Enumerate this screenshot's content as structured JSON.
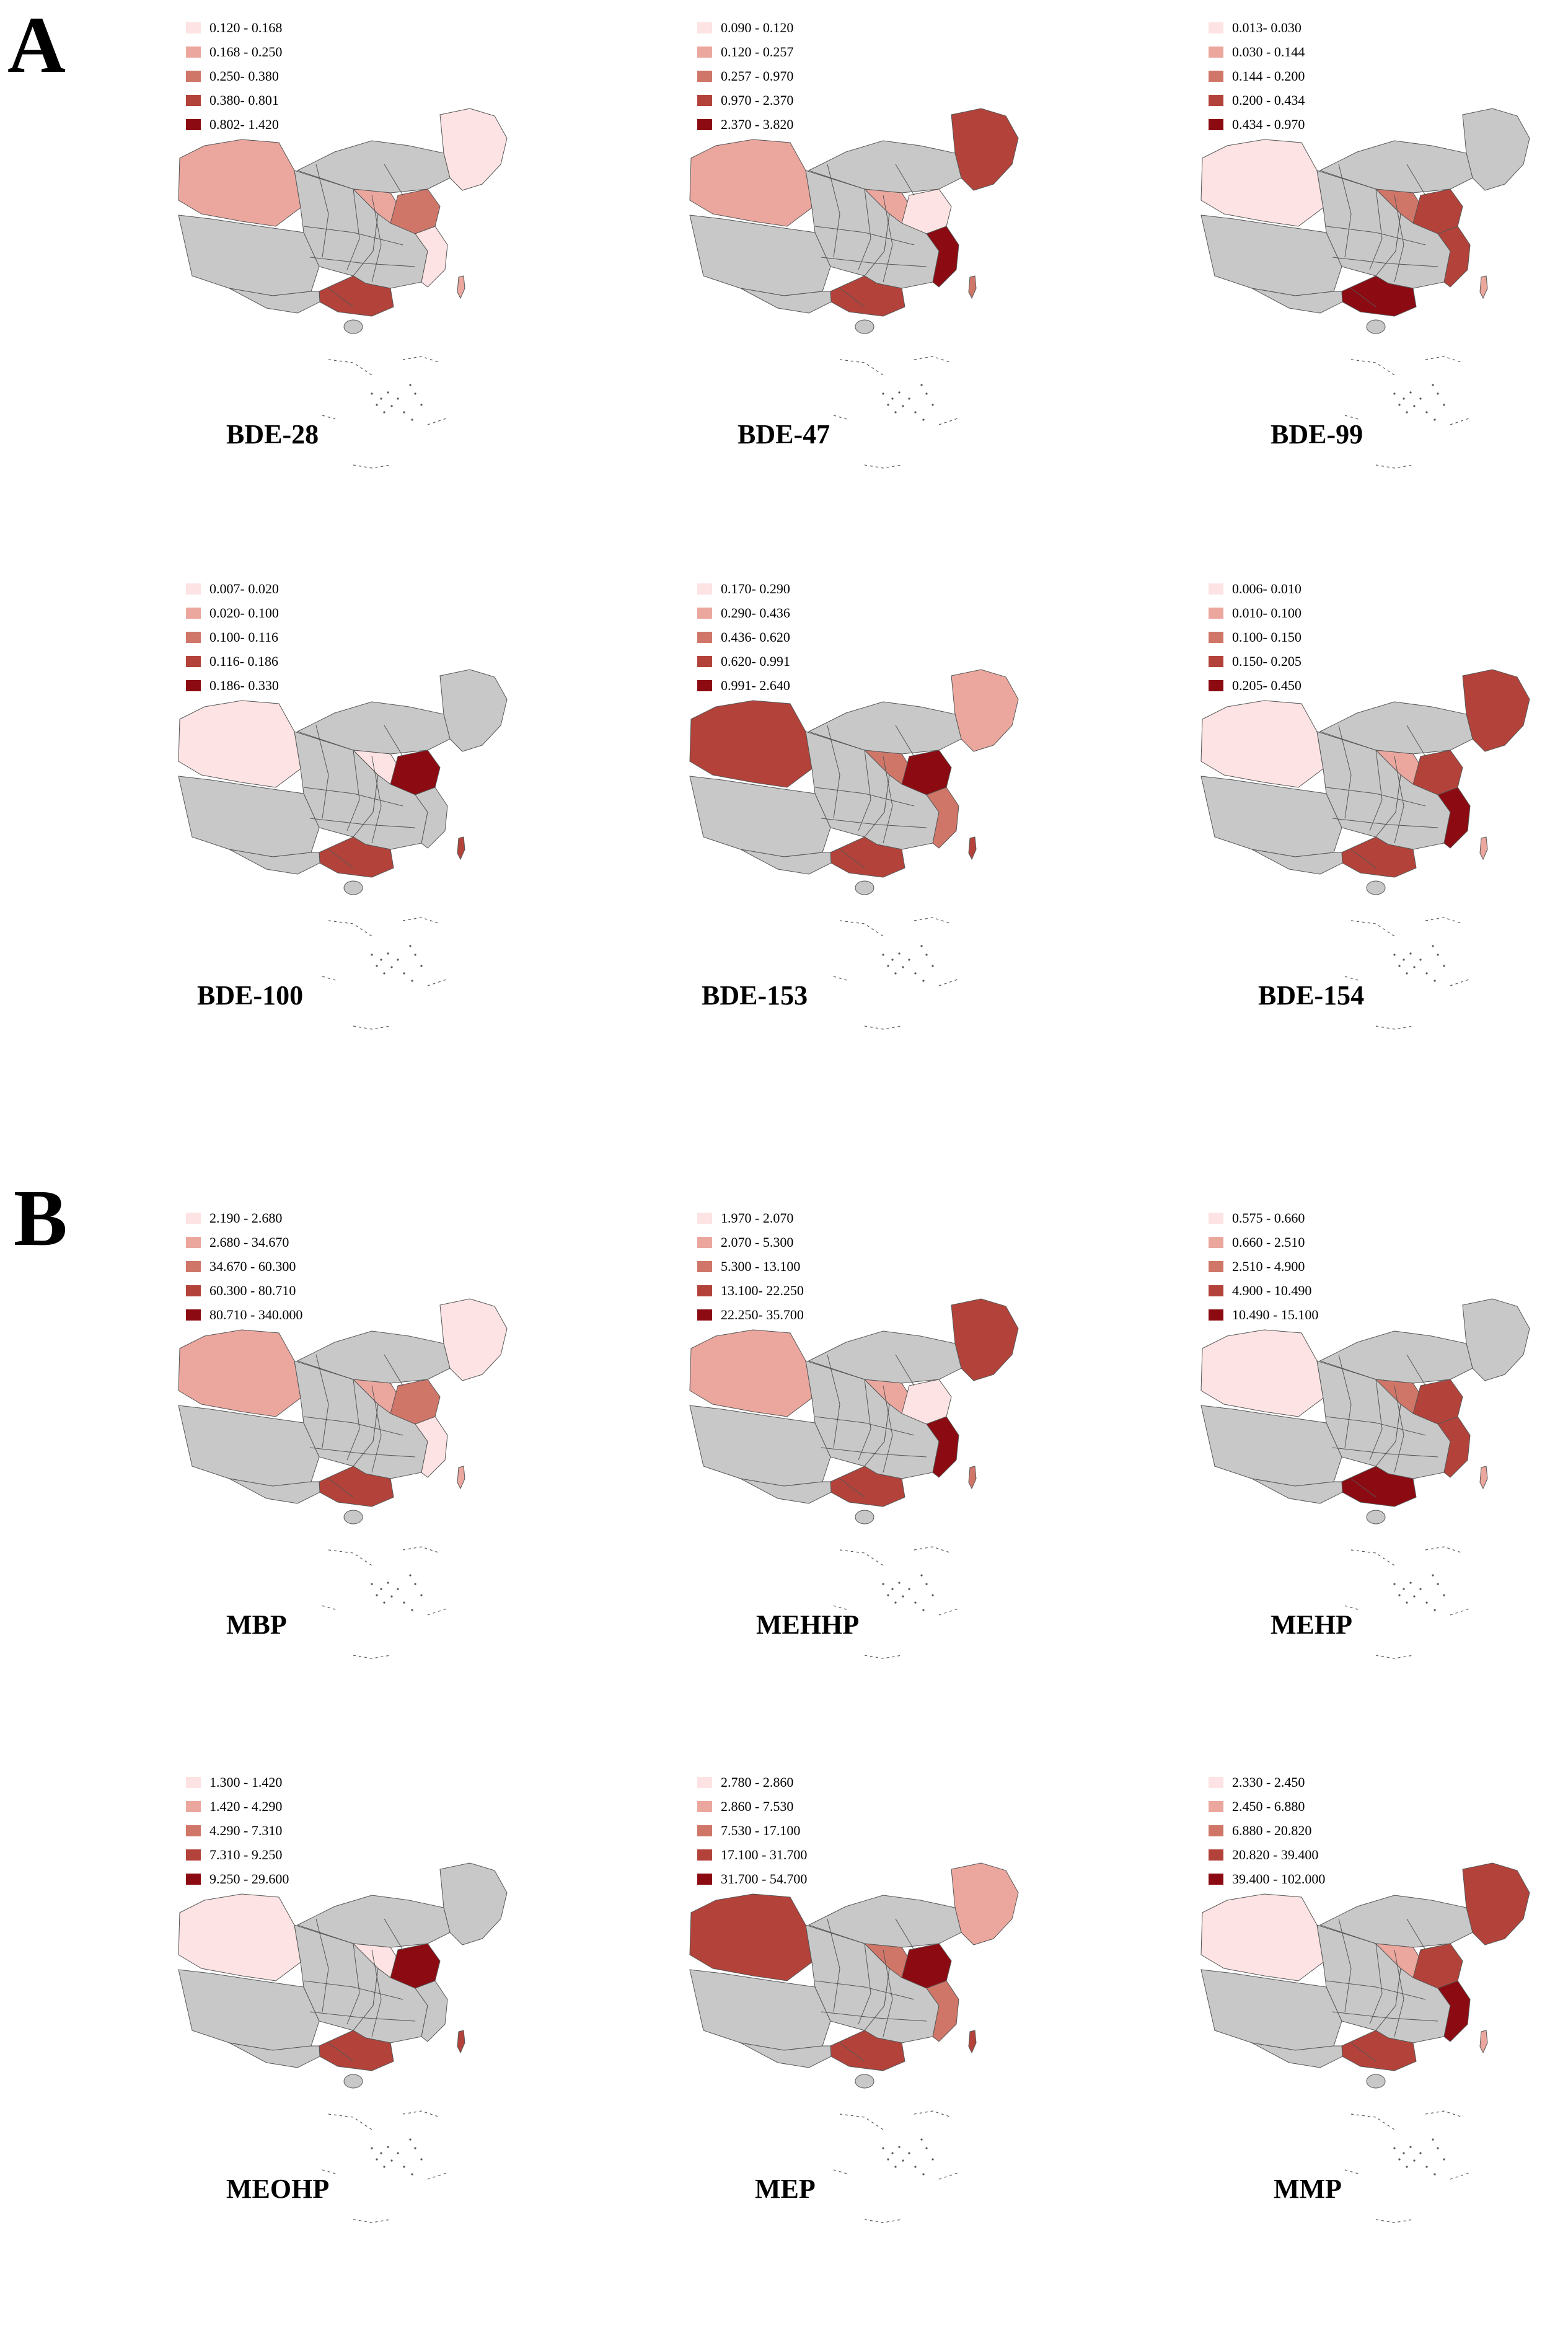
{
  "colors": {
    "class1": "#fde3e3",
    "class2": "#eba79e",
    "class3": "#d07668",
    "class4": "#b3433a",
    "class5": "#8c0b12",
    "nodata": "#c8c8c8",
    "boundary": "#555555"
  },
  "sections": [
    {
      "letter": "A",
      "panels": [
        {
          "title": "BDE-28",
          "legend": [
            "0.120 - 0.168",
            "0.168 - 0.250",
            "0.250- 0.380",
            "0.380- 0.801",
            "0.802- 1.420"
          ],
          "regions": {
            "west": 2,
            "northeast": 1,
            "north": 2,
            "east_coast": 3,
            "south": 4,
            "southeast": 1,
            "island": 2
          }
        },
        {
          "title": "BDE-47",
          "legend": [
            "0.090 - 0.120",
            "0.120 - 0.257",
            "0.257 - 0.970",
            "0.970 - 2.370",
            "2.370 - 3.820"
          ],
          "regions": {
            "west": 2,
            "northeast": 4,
            "north": 2,
            "east_coast": 1,
            "south": 4,
            "southeast": 5,
            "island": 3
          }
        },
        {
          "title": "BDE-99",
          "legend": [
            "0.013- 0.030",
            "0.030 - 0.144",
            "0.144 - 0.200",
            "0.200 - 0.434",
            "0.434 - 0.970"
          ],
          "regions": {
            "west": 1,
            "northeast": 0,
            "north": 3,
            "east_coast": 4,
            "south": 5,
            "southeast": 4,
            "island": 2
          }
        },
        {
          "title": "BDE-100",
          "legend": [
            "0.007- 0.020",
            "0.020- 0.100",
            "0.100- 0.116",
            "0.116- 0.186",
            "0.186- 0.330"
          ],
          "regions": {
            "west": 1,
            "northeast": 0,
            "north": 1,
            "east_coast": 5,
            "south": 4,
            "southeast": 0,
            "island": 4
          }
        },
        {
          "title": "BDE-153",
          "legend": [
            "0.170- 0.290",
            "0.290- 0.436",
            "0.436- 0.620",
            "0.620- 0.991",
            "0.991- 2.640"
          ],
          "regions": {
            "west": 4,
            "northeast": 2,
            "north": 3,
            "east_coast": 5,
            "south": 4,
            "southeast": 3,
            "island": 4
          }
        },
        {
          "title": "BDE-154",
          "legend": [
            "0.006- 0.010",
            "0.010- 0.100",
            "0.100- 0.150",
            "0.150- 0.205",
            "0.205- 0.450"
          ],
          "regions": {
            "west": 1,
            "northeast": 4,
            "north": 2,
            "east_coast": 4,
            "south": 4,
            "southeast": 5,
            "island": 2
          }
        }
      ]
    },
    {
      "letter": "B",
      "panels": [
        {
          "title": "MBP",
          "legend": [
            "2.190 - 2.680",
            "2.680 - 34.670",
            "34.670 - 60.300",
            "60.300 - 80.710",
            "80.710 - 340.000"
          ],
          "regions": {
            "west": 2,
            "northeast": 1,
            "north": 2,
            "east_coast": 3,
            "south": 4,
            "southeast": 1,
            "island": 2
          }
        },
        {
          "title": "MEHHP",
          "legend": [
            "1.970 - 2.070",
            "2.070 - 5.300",
            "5.300 - 13.100",
            "13.100- 22.250",
            "22.250- 35.700"
          ],
          "regions": {
            "west": 2,
            "northeast": 4,
            "north": 2,
            "east_coast": 1,
            "south": 4,
            "southeast": 5,
            "island": 3
          }
        },
        {
          "title": "MEHP",
          "legend": [
            "0.575 - 0.660",
            "0.660 - 2.510",
            "2.510 - 4.900",
            "4.900 - 10.490",
            "10.490 - 15.100"
          ],
          "regions": {
            "west": 1,
            "northeast": 0,
            "north": 3,
            "east_coast": 4,
            "south": 5,
            "southeast": 4,
            "island": 2
          }
        },
        {
          "title": "MEOHP",
          "legend": [
            "1.300 - 1.420",
            "1.420 - 4.290",
            "4.290 - 7.310",
            "7.310 - 9.250",
            "9.250 - 29.600"
          ],
          "regions": {
            "west": 1,
            "northeast": 0,
            "north": 1,
            "east_coast": 5,
            "south": 4,
            "southeast": 0,
            "island": 4
          }
        },
        {
          "title": "MEP",
          "legend": [
            "2.780 - 2.860",
            "2.860 - 7.530",
            "7.530 - 17.100",
            "17.100 - 31.700",
            "31.700 - 54.700"
          ],
          "regions": {
            "west": 4,
            "northeast": 2,
            "north": 3,
            "east_coast": 5,
            "south": 4,
            "southeast": 3,
            "island": 4
          }
        },
        {
          "title": "MMP",
          "legend": [
            "2.330 - 2.450",
            "2.450 - 6.880",
            "6.880 - 20.820",
            "20.820 - 39.400",
            "39.400 - 102.000"
          ],
          "regions": {
            "west": 1,
            "northeast": 4,
            "north": 2,
            "east_coast": 4,
            "south": 4,
            "southeast": 5,
            "island": 2
          }
        }
      ]
    }
  ]
}
